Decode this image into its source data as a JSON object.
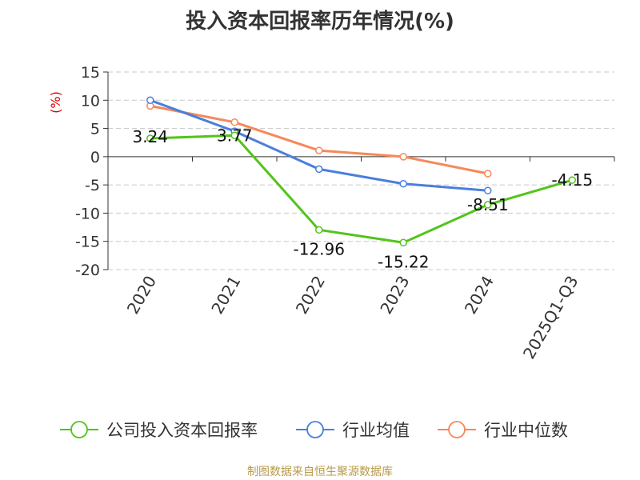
{
  "title": "投入资本回报率历年情况(%)",
  "source": "制图数据来自恒生聚源数据库",
  "colors": {
    "axis": "#333333",
    "grid": "#c8c8c8",
    "unit": "#e00000",
    "company": "#52c41a",
    "avg": "#4a7fdc",
    "median": "#f5895a"
  },
  "chart_data": {
    "type": "line",
    "title": "投入资本回报率历年情况(%)",
    "ylabel": "(%)",
    "xlabel": "",
    "ylim": [
      -20,
      15
    ],
    "yticks": [
      15,
      10,
      5,
      0,
      -5,
      -10,
      -15,
      -20
    ],
    "grid": true,
    "legend_position": "bottom",
    "categories": [
      "2020",
      "2021",
      "2022",
      "2023",
      "2024",
      "2025Q1-Q3"
    ],
    "series": [
      {
        "name": "公司投入资本回报率",
        "values": [
          3.24,
          3.77,
          -12.96,
          -15.22,
          -8.51,
          -4.15
        ],
        "data_labels": [
          "3.24",
          "3.77",
          "-12.96",
          "-15.22",
          "-8.51",
          "-4.15"
        ]
      },
      {
        "name": "行业均值",
        "values": [
          10.0,
          4.5,
          -2.2,
          -4.8,
          -6.0,
          null
        ]
      },
      {
        "name": "行业中位数",
        "values": [
          9.0,
          6.1,
          1.1,
          0.0,
          -3.0,
          null
        ]
      }
    ]
  }
}
